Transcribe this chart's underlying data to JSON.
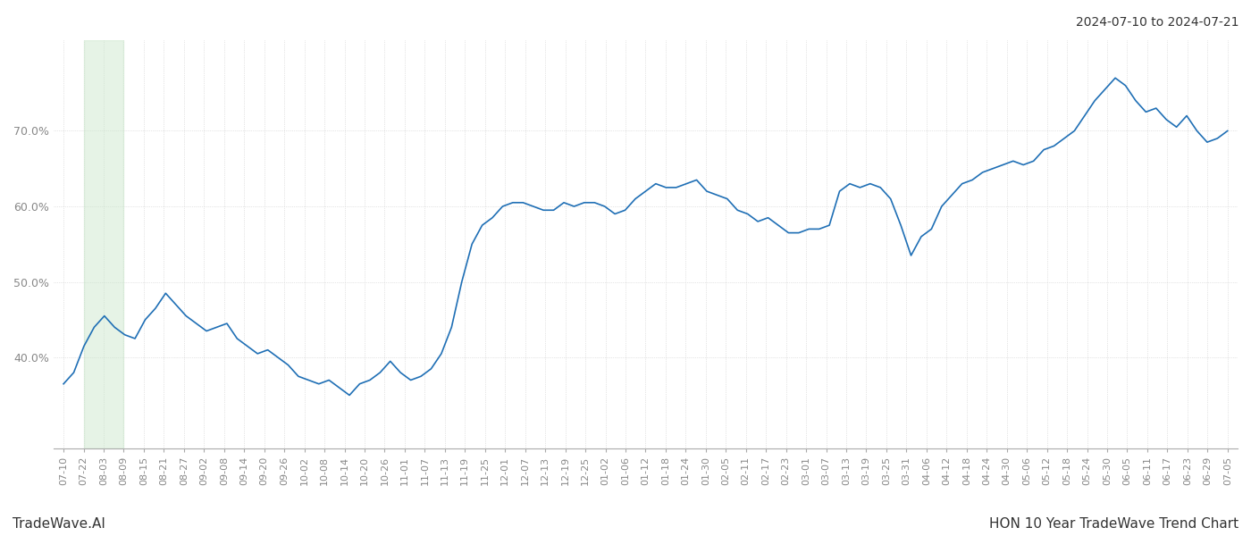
{
  "title_top_right": "2024-07-10 to 2024-07-21",
  "title_bottom_left": "TradeWave.AI",
  "title_bottom_right": "HON 10 Year TradeWave Trend Chart",
  "line_color": "#1f6fb5",
  "line_width": 1.2,
  "highlight_color": "#c8e6c9",
  "highlight_alpha": 0.45,
  "highlight_xstart": 1,
  "highlight_xend": 3,
  "background_color": "#ffffff",
  "grid_color": "#cccccc",
  "grid_style": "dotted",
  "yticks": [
    40.0,
    50.0,
    60.0,
    70.0
  ],
  "ylim": [
    28,
    82
  ],
  "x_labels": [
    "07-10",
    "07-22",
    "08-03",
    "08-09",
    "08-15",
    "08-21",
    "08-27",
    "09-02",
    "09-08",
    "09-14",
    "09-20",
    "09-26",
    "10-02",
    "10-08",
    "10-14",
    "10-20",
    "10-26",
    "11-01",
    "11-07",
    "11-13",
    "11-19",
    "11-25",
    "12-01",
    "12-07",
    "12-13",
    "12-19",
    "12-25",
    "01-02",
    "01-06",
    "01-12",
    "01-18",
    "01-24",
    "01-30",
    "02-05",
    "02-11",
    "02-17",
    "02-23",
    "03-01",
    "03-07",
    "03-13",
    "03-19",
    "03-25",
    "03-31",
    "04-06",
    "04-12",
    "04-18",
    "04-24",
    "04-30",
    "05-06",
    "05-12",
    "05-18",
    "05-24",
    "05-30",
    "06-05",
    "06-11",
    "06-17",
    "06-23",
    "06-29",
    "07-05"
  ],
  "y_values": [
    36.5,
    38.0,
    41.5,
    44.0,
    45.5,
    44.0,
    43.0,
    42.5,
    45.0,
    46.5,
    48.5,
    47.0,
    45.5,
    44.5,
    43.5,
    44.0,
    44.5,
    42.5,
    41.5,
    40.5,
    41.0,
    40.0,
    39.0,
    37.5,
    37.0,
    36.5,
    37.0,
    36.0,
    35.0,
    36.5,
    37.0,
    38.0,
    39.5,
    38.0,
    37.0,
    37.5,
    38.5,
    40.5,
    44.0,
    50.0,
    55.0,
    57.5,
    58.5,
    60.0,
    60.5,
    60.5,
    60.0,
    59.5,
    59.5,
    60.5,
    60.0,
    60.5,
    60.5,
    60.0,
    59.0,
    59.5,
    61.0,
    62.0,
    63.0,
    62.5,
    62.5,
    63.0,
    63.5,
    62.0,
    61.5,
    61.0,
    59.5,
    59.0,
    58.0,
    58.5,
    57.5,
    56.5,
    56.5,
    57.0,
    57.0,
    57.5,
    62.0,
    63.0,
    62.5,
    63.0,
    62.5,
    61.0,
    57.5,
    53.5,
    56.0,
    57.0,
    60.0,
    61.5,
    63.0,
    63.5,
    64.5,
    65.0,
    65.5,
    66.0,
    65.5,
    66.0,
    67.5,
    68.0,
    69.0,
    70.0,
    72.0,
    74.0,
    75.5,
    77.0,
    76.0,
    74.0,
    72.5,
    73.0,
    71.5,
    70.5,
    72.0,
    70.0,
    68.5,
    69.0,
    70.0
  ],
  "tick_fontsize": 8,
  "label_fontsize": 10
}
